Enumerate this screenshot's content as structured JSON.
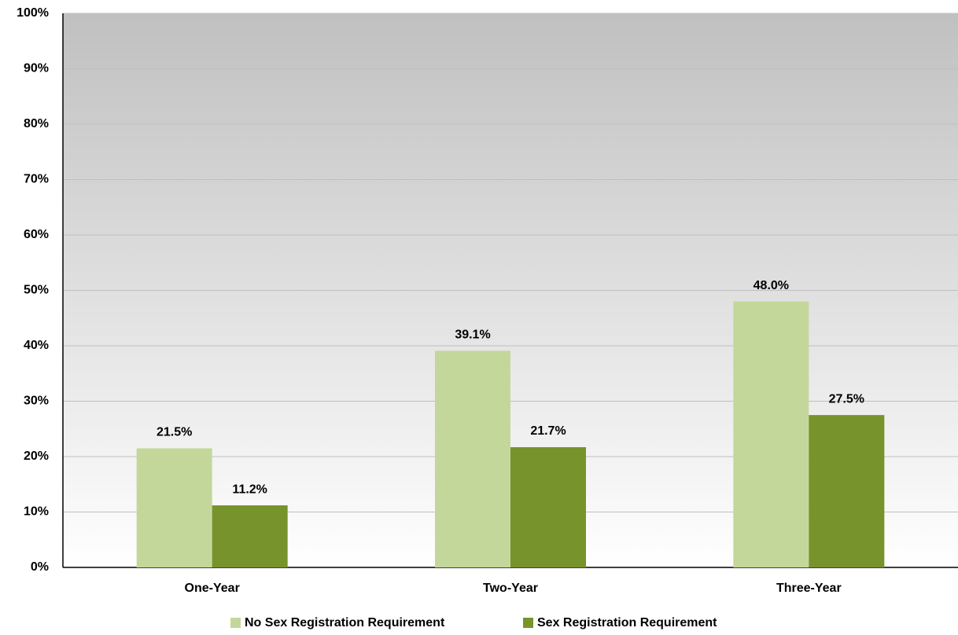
{
  "chart_data": {
    "type": "bar",
    "categories": [
      "One-Year",
      "Two-Year",
      "Three-Year"
    ],
    "series": [
      {
        "name": "No Sex Registration Requirement",
        "color": "#c4d79b",
        "values": [
          21.5,
          39.1,
          48.0
        ],
        "value_labels": [
          "21.5%",
          "39.1%",
          "48.0%"
        ]
      },
      {
        "name": "Sex Registration Requirement",
        "color": "#77932b",
        "values": [
          11.2,
          21.7,
          27.5
        ],
        "value_labels": [
          "11.2%",
          "21.7%",
          "27.5%"
        ]
      }
    ],
    "ylim": [
      0,
      100
    ],
    "yticks": [
      {
        "value": 0,
        "label": "0%"
      },
      {
        "value": 10,
        "label": "10%"
      },
      {
        "value": 20,
        "label": "20%"
      },
      {
        "value": 30,
        "label": "30%"
      },
      {
        "value": 40,
        "label": "40%"
      },
      {
        "value": 50,
        "label": "50%"
      },
      {
        "value": 60,
        "label": "60%"
      },
      {
        "value": 70,
        "label": "70%"
      },
      {
        "value": 80,
        "label": "80%"
      },
      {
        "value": 90,
        "label": "90%"
      },
      {
        "value": 100,
        "label": "100%"
      }
    ],
    "grid": true,
    "legend": "bottom"
  }
}
